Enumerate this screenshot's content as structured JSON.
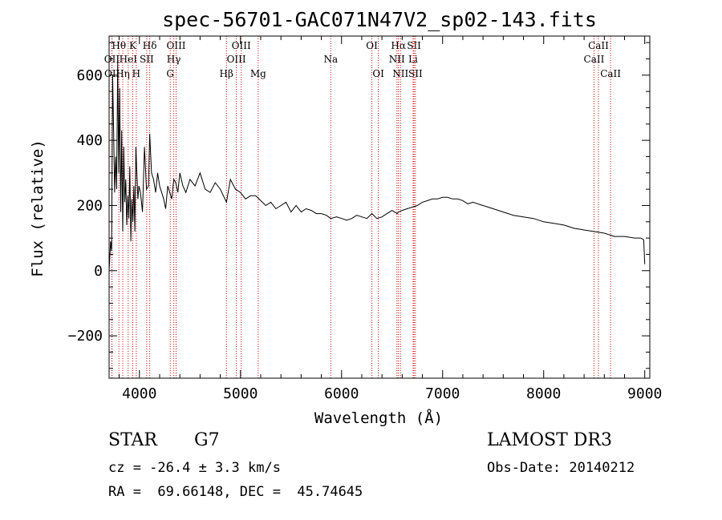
{
  "chart_data": {
    "type": "line",
    "title": "spec-56701-GAC071N47V2_sp02-143.fits",
    "xlabel": "Wavelength (Å)",
    "ylabel": "Flux (relative)",
    "xlim": [
      3700,
      9050
    ],
    "ylim": [
      -330,
      720
    ],
    "xticks": [
      4000,
      5000,
      6000,
      7000,
      8000,
      9000
    ],
    "yticks": [
      -200,
      0,
      200,
      400,
      600
    ],
    "series": [
      {
        "name": "spectrum",
        "x": [
          3700,
          3715,
          3725,
          3735,
          3745,
          3755,
          3765,
          3775,
          3785,
          3795,
          3805,
          3815,
          3825,
          3835,
          3845,
          3855,
          3865,
          3875,
          3885,
          3895,
          3905,
          3915,
          3925,
          3935,
          3945,
          3955,
          3965,
          3975,
          3985,
          3995,
          4010,
          4030,
          4050,
          4070,
          4090,
          4102,
          4120,
          4140,
          4160,
          4180,
          4200,
          4220,
          4240,
          4260,
          4280,
          4300,
          4320,
          4340,
          4360,
          4380,
          4400,
          4430,
          4460,
          4500,
          4550,
          4600,
          4650,
          4700,
          4750,
          4800,
          4861,
          4900,
          4950,
          5000,
          5050,
          5100,
          5150,
          5200,
          5250,
          5300,
          5350,
          5400,
          5450,
          5500,
          5550,
          5600,
          5650,
          5700,
          5750,
          5800,
          5850,
          5893,
          5950,
          6000,
          6050,
          6100,
          6150,
          6200,
          6250,
          6300,
          6350,
          6400,
          6450,
          6500,
          6550,
          6563,
          6600,
          6650,
          6700,
          6750,
          6800,
          6850,
          6900,
          6950,
          7000,
          7050,
          7100,
          7150,
          7200,
          7250,
          7300,
          7400,
          7500,
          7600,
          7700,
          7800,
          7900,
          8000,
          8100,
          8200,
          8300,
          8400,
          8500,
          8600,
          8700,
          8800,
          8900,
          8960,
          8990,
          9000
        ],
        "y": [
          0,
          90,
          60,
          600,
          420,
          240,
          350,
          250,
          640,
          300,
          560,
          180,
          430,
          120,
          380,
          210,
          280,
          140,
          230,
          160,
          320,
          90,
          220,
          150,
          260,
          120,
          380,
          300,
          220,
          260,
          240,
          180,
          380,
          250,
          260,
          420,
          300,
          280,
          240,
          300,
          260,
          240,
          220,
          190,
          260,
          240,
          220,
          280,
          270,
          240,
          300,
          260,
          240,
          280,
          260,
          300,
          250,
          240,
          270,
          250,
          210,
          280,
          250,
          240,
          220,
          230,
          230,
          215,
          200,
          210,
          190,
          200,
          210,
          180,
          200,
          180,
          190,
          185,
          175,
          175,
          170,
          160,
          165,
          160,
          155,
          160,
          170,
          165,
          160,
          175,
          160,
          165,
          175,
          185,
          175,
          180,
          185,
          190,
          195,
          200,
          210,
          215,
          220,
          220,
          225,
          225,
          220,
          220,
          215,
          205,
          210,
          200,
          190,
          180,
          170,
          165,
          160,
          150,
          145,
          140,
          130,
          125,
          120,
          115,
          105,
          105,
          100,
          100,
          95,
          20
        ]
      }
    ],
    "spectral_lines": [
      {
        "name": "Hθ",
        "x": 3797,
        "row": 1
      },
      {
        "name": "OII",
        "x": 3727,
        "row": 2
      },
      {
        "name": "OII",
        "x": 3729,
        "row": 3
      },
      {
        "name": "Hη",
        "x": 3835,
        "row": 3
      },
      {
        "name": "HeI",
        "x": 3889,
        "row": 2
      },
      {
        "name": "K",
        "x": 3934,
        "row": 1
      },
      {
        "name": "H",
        "x": 3969,
        "row": 3
      },
      {
        "name": "SII",
        "x": 4072,
        "row": 2
      },
      {
        "name": "Hδ",
        "x": 4102,
        "row": 1
      },
      {
        "name": "OIII",
        "x": 4363,
        "row": 1
      },
      {
        "name": "Hγ",
        "x": 4340,
        "row": 2
      },
      {
        "name": "G",
        "x": 4305,
        "row": 3
      },
      {
        "name": "Hβ",
        "x": 4861,
        "row": 3
      },
      {
        "name": "OIII",
        "x": 5007,
        "row": 1
      },
      {
        "name": "OIII",
        "x": 4959,
        "row": 2
      },
      {
        "name": "Mg",
        "x": 5175,
        "row": 3
      },
      {
        "name": "Na",
        "x": 5893,
        "row": 2
      },
      {
        "name": "OI",
        "x": 6300,
        "row": 1
      },
      {
        "name": "OI",
        "x": 6364,
        "row": 3
      },
      {
        "name": "Hα",
        "x": 6563,
        "row": 1
      },
      {
        "name": "NII",
        "x": 6548,
        "row": 2
      },
      {
        "name": "NII",
        "x": 6583,
        "row": 3
      },
      {
        "name": "SII",
        "x": 6717,
        "row": 1
      },
      {
        "name": "Li",
        "x": 6708,
        "row": 2
      },
      {
        "name": "SII",
        "x": 6731,
        "row": 3
      },
      {
        "name": "CaII",
        "x": 8542,
        "row": 1
      },
      {
        "name": "CaII",
        "x": 8498,
        "row": 2
      },
      {
        "name": "CaII",
        "x": 8662,
        "row": 3
      }
    ]
  },
  "info": {
    "object_class": "STAR",
    "subclass": "G7",
    "survey": "LAMOST DR3",
    "velocity": "cz = -26.4 ± 3.3 km/s",
    "obs_date": "Obs-Date: 20140212",
    "coords": "RA =  69.66148, DEC =  45.74645"
  },
  "colors": {
    "spectrum": "#000000",
    "line_markers": "#cc0000",
    "axes": "#000000",
    "background": "#ffffff"
  }
}
